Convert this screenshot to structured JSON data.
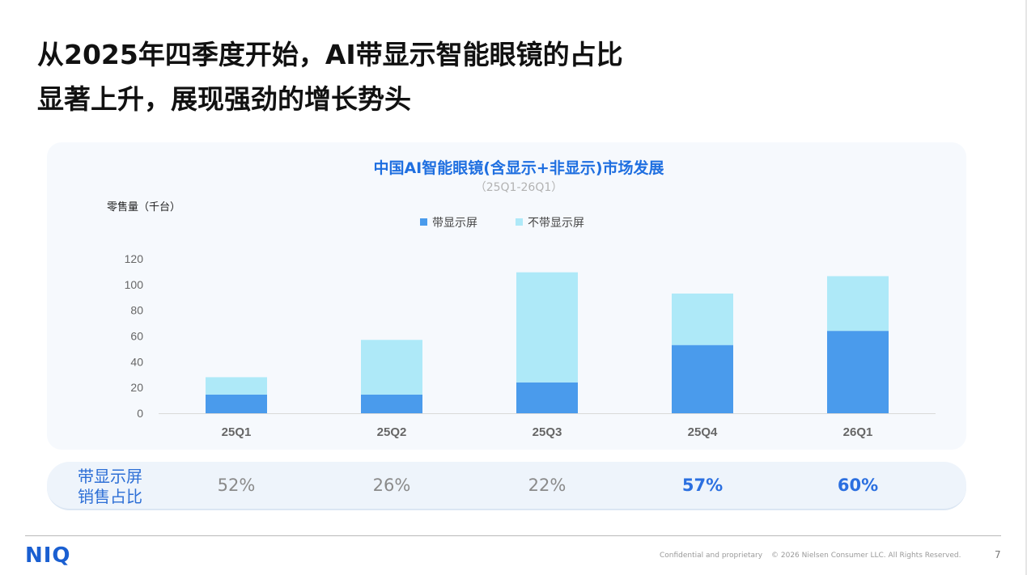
{
  "headline": {
    "line1": "从2025年四季度开始，AI带显示智能眼镜的占比",
    "line2": "显著上升，展现强劲的增长势头"
  },
  "chart_data": {
    "type": "bar",
    "stacked": true,
    "title": "中国AI智能眼镜(含显示+非显示)市场发展",
    "subtitle": "（25Q1-26Q1）",
    "ylabel": "零售量（千台）",
    "xlabel": "",
    "categories": [
      "25Q1",
      "25Q2",
      "25Q3",
      "25Q4",
      "26Q1"
    ],
    "series": [
      {
        "name": "带显示屏",
        "color": "#4a9bec",
        "values": [
          14.5,
          14.5,
          24,
          53,
          64
        ]
      },
      {
        "name": "不带显示屏",
        "color": "#aee9f8",
        "values": [
          13.5,
          42.5,
          85.5,
          40,
          42.5
        ]
      }
    ],
    "ylim": [
      0,
      120
    ],
    "yticks": [
      0,
      20,
      40,
      60,
      80,
      100,
      120
    ],
    "grid": false,
    "legend_position": "top-center"
  },
  "share_row": {
    "label_line1": "带显示屏",
    "label_line2": "销售占比",
    "values": [
      "52%",
      "26%",
      "22%",
      "57%",
      "60%"
    ],
    "highlight": [
      false,
      false,
      false,
      true,
      true
    ]
  },
  "footer": {
    "logo": "NIQ",
    "confidential": "Confidential and proprietary",
    "copyright": "© 2026 Nielsen Consumer LLC. All Rights Reserved.",
    "page_number": "7"
  }
}
